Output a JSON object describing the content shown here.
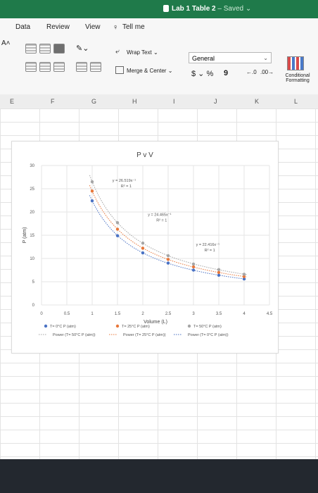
{
  "window": {
    "doc_title": "Lab 1 Table 2",
    "saved_status": " – Saved ⌄"
  },
  "tabs": [
    {
      "label": "Data"
    },
    {
      "label": "Review"
    },
    {
      "label": "View"
    },
    {
      "label": "Tell me"
    }
  ],
  "ribbon": {
    "font_size_fragment": "A˄",
    "wrap_text": "Wrap Text ⌄",
    "merge_center": "Merge & Center ⌄",
    "number_format": "General",
    "currency": "$ ⌄ %",
    "comma": "9",
    "conditional_formatting_line1": "Conditional",
    "conditional_formatting_line2": "Formatting"
  },
  "columns": [
    "E",
    "F",
    "G",
    "H",
    "I",
    "J",
    "K",
    "L"
  ],
  "colors": {
    "series_0C": "#4a72c4",
    "series_25C": "#e8773a",
    "series_50C": "#a6a6a6",
    "ribbon_green": "#1f7a4a"
  },
  "chart_data": {
    "type": "scatter",
    "title": "P v V",
    "xlabel": "Volume (L)",
    "ylabel": "P (atm)",
    "xlim": [
      0,
      4.5
    ],
    "ylim": [
      0,
      30
    ],
    "x_ticks": [
      "0",
      "0.5",
      "1",
      "1.5",
      "2",
      "2.5",
      "3",
      "3.5",
      "4",
      "4.5"
    ],
    "y_ticks": [
      "0",
      "5",
      "10",
      "15",
      "20",
      "25",
      "30"
    ],
    "series": [
      {
        "name": "T= 0°C P (atm)",
        "color": "#4a72c4",
        "x": [
          1.0,
          1.5,
          2.0,
          2.5,
          3.0,
          3.5,
          4.0
        ],
        "y": [
          22.4,
          14.9,
          11.2,
          9.0,
          7.5,
          6.4,
          5.6
        ]
      },
      {
        "name": "T= 25°C P (atm)",
        "color": "#e8773a",
        "x": [
          1.0,
          1.5,
          2.0,
          2.5,
          3.0,
          3.5,
          4.0
        ],
        "y": [
          24.5,
          16.3,
          12.2,
          9.8,
          8.2,
          7.0,
          6.1
        ]
      },
      {
        "name": "T= 50°C P (atm)",
        "color": "#a6a6a6",
        "x": [
          1.0,
          1.5,
          2.0,
          2.5,
          3.0,
          3.5,
          4.0
        ],
        "y": [
          26.5,
          17.7,
          13.3,
          10.6,
          8.8,
          7.6,
          6.6
        ]
      }
    ],
    "trendlines": [
      {
        "name": "Power (T= 50°C P (atm))",
        "eq": "y = 26.519x⁻¹",
        "r2": "R² = 1",
        "coef": 26.519
      },
      {
        "name": "Power (T= 25°C P (atm))",
        "eq": "y = 24.465x⁻¹",
        "r2": "R² = 1",
        "coef": 24.465
      },
      {
        "name": "Power (T= 0°C P (atm))",
        "eq": "y = 22.416x⁻¹",
        "r2": "R² = 1",
        "coef": 22.416
      }
    ],
    "legend": [
      {
        "label": "T= 0°C P (atm)"
      },
      {
        "label": "T= 25°C P (atm)"
      },
      {
        "label": "T= 50°C P (atm)"
      },
      {
        "label": "Power (T= 50°C P (atm))"
      },
      {
        "label": "Power (T= 25°C P (atm))"
      },
      {
        "label": "Power (T= 0°C P (atm))"
      }
    ]
  }
}
